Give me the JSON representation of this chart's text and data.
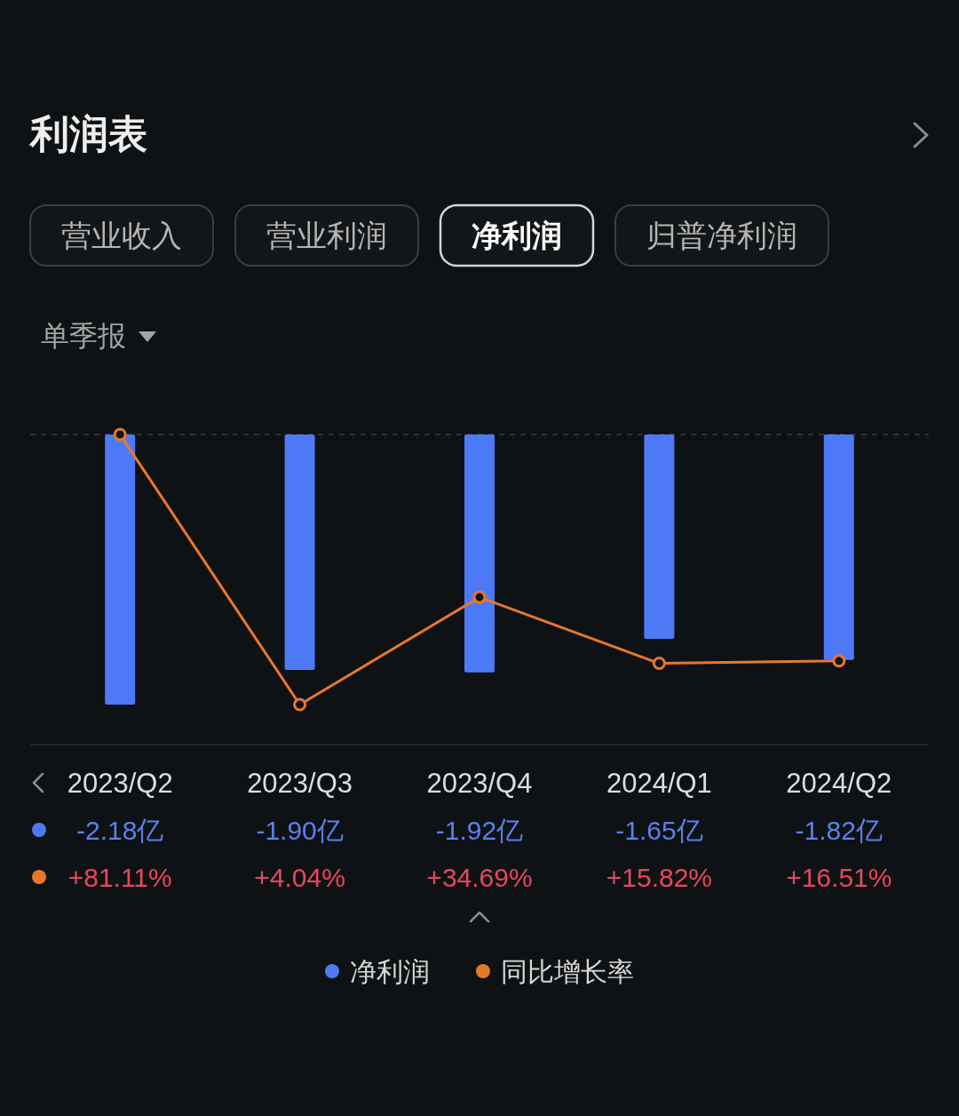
{
  "chart_data": {
    "type": "bar",
    "title": "利润表",
    "annotations": [
      "营业收入",
      "营业利润",
      "净利润",
      "归普净利润",
      "单季报"
    ],
    "categories": [
      "2023/Q2",
      "2023/Q3",
      "2023/Q4",
      "2024/Q1",
      "2024/Q2"
    ],
    "series": [
      {
        "name": "净利润",
        "color": "#4e79f6",
        "values": [
          -2.18,
          -1.9,
          -1.92,
          -1.65,
          -1.82
        ],
        "value_labels": [
          "-2.18亿",
          "-1.90亿",
          "-1.92亿",
          "-1.65亿",
          "-1.82亿"
        ]
      },
      {
        "name": "同比增长率",
        "type": "line",
        "axis": "y2",
        "color": "#e6782e",
        "values": [
          81.11,
          4.04,
          34.69,
          15.82,
          16.51
        ],
        "value_labels": [
          "+81.11%",
          "+4.04%",
          "+34.69%",
          "+15.82%",
          "+16.51%"
        ]
      }
    ],
    "ylim": [
      -2.18,
      0
    ],
    "y2lim": [
      4.04,
      81.11
    ],
    "ref_lines": [
      {
        "axis": "y",
        "value": 0,
        "color": "#3a3e42",
        "line_style": "dashed"
      }
    ],
    "marker": "circle",
    "line_style": "solid",
    "legend": "bottom",
    "tick_labels": "x"
  }
}
